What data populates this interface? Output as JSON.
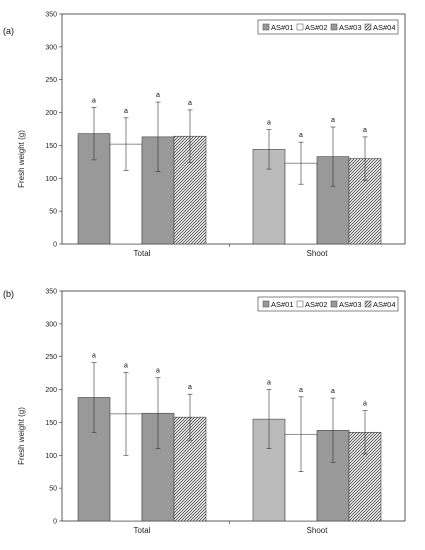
{
  "chart_data": [
    {
      "type": "bar",
      "panel_label": "(a)",
      "ylabel": "Fresh weight (g)",
      "ylim": [
        0,
        350
      ],
      "yticks": [
        "0",
        "50",
        "100",
        "150",
        "200",
        "250",
        "300",
        "350"
      ],
      "categories": [
        "Total",
        "Shoot"
      ],
      "legend_position": "top-right",
      "series": [
        {
          "name": "AS#01",
          "values": [
            168,
            144
          ],
          "errors": [
            40,
            30
          ],
          "labels": [
            "a",
            "a"
          ]
        },
        {
          "name": "AS#02",
          "values": [
            152,
            123
          ],
          "errors": [
            40,
            32
          ],
          "labels": [
            "a",
            "a"
          ]
        },
        {
          "name": "AS#03",
          "values": [
            163,
            133
          ],
          "errors": [
            53,
            45
          ],
          "labels": [
            "a",
            "a"
          ]
        },
        {
          "name": "AS#04",
          "values": [
            164,
            130
          ],
          "errors": [
            40,
            33
          ],
          "labels": [
            "a",
            "a"
          ]
        }
      ]
    },
    {
      "type": "bar",
      "panel_label": "(b)",
      "ylabel": "Fresh weight (g)",
      "ylim": [
        0,
        350
      ],
      "yticks": [
        "0",
        "50",
        "100",
        "150",
        "200",
        "250",
        "300",
        "350"
      ],
      "categories": [
        "Total",
        "Shoot"
      ],
      "legend_position": "top-right",
      "series": [
        {
          "name": "AS#01",
          "values": [
            188,
            155
          ],
          "errors": [
            53,
            45
          ],
          "labels": [
            "a",
            "a"
          ]
        },
        {
          "name": "AS#02",
          "values": [
            163,
            132
          ],
          "errors": [
            63,
            57
          ],
          "labels": [
            "a",
            "a"
          ]
        },
        {
          "name": "AS#03",
          "values": [
            164,
            138
          ],
          "errors": [
            54,
            49
          ],
          "labels": [
            "a",
            "a"
          ]
        },
        {
          "name": "AS#04",
          "values": [
            158,
            135
          ],
          "errors": [
            35,
            33
          ],
          "labels": [
            "a",
            "a"
          ]
        }
      ]
    }
  ],
  "colors": {
    "total": [
      "#999999",
      "#ffffff",
      "#999999",
      "hatch"
    ],
    "shoot": [
      "#bbbbbb",
      "#ffffff",
      "#999999",
      "hatch"
    ]
  }
}
